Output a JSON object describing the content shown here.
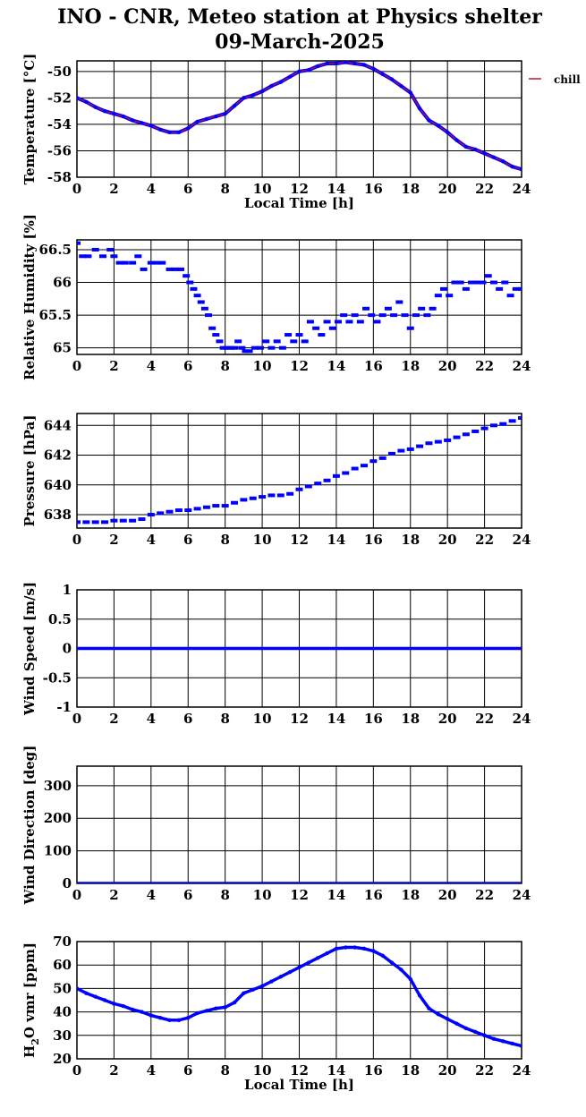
{
  "title": "INO - CNR, Meteo station at Physics shelter",
  "subtitle": "09-March-2025",
  "colors": {
    "series": "#0000ff",
    "chill": "#c8102e",
    "axis": "#000000"
  },
  "chart_data": [
    {
      "type": "line",
      "id": "temperature",
      "ylabel": "Temperature [°C]",
      "xlabel": "Local Time [h]",
      "xlim": [
        0,
        24
      ],
      "ylim": [
        -58,
        -49.2
      ],
      "yticks": [
        -58,
        -56,
        -54,
        -52,
        -50
      ],
      "xticks": [
        0,
        2,
        4,
        6,
        8,
        10,
        12,
        14,
        16,
        18,
        20,
        22,
        24
      ],
      "grid": true,
      "legend": [
        "chill"
      ],
      "series": [
        {
          "name": "",
          "x": [
            0,
            0.5,
            1,
            1.5,
            2,
            2.5,
            3,
            3.5,
            4,
            4.5,
            5,
            5.5,
            6,
            6.5,
            7,
            7.5,
            8,
            8.5,
            9,
            9.5,
            10,
            10.5,
            11,
            11.5,
            12,
            12.5,
            13,
            13.5,
            14,
            14.5,
            15,
            15.5,
            16,
            16.5,
            17,
            17.5,
            18,
            18.5,
            19,
            19.5,
            20,
            20.5,
            21,
            21.5,
            22,
            22.5,
            23,
            23.5,
            24
          ],
          "y": [
            -52,
            -52.3,
            -52.7,
            -53,
            -53.2,
            -53.4,
            -53.7,
            -53.9,
            -54.1,
            -54.4,
            -54.6,
            -54.6,
            -54.3,
            -53.8,
            -53.6,
            -53.4,
            -53.2,
            -52.6,
            -52,
            -51.8,
            -51.5,
            -51.1,
            -50.8,
            -50.4,
            -50,
            -49.9,
            -49.6,
            -49.4,
            -49.4,
            -49.3,
            -49.4,
            -49.5,
            -49.8,
            -50.2,
            -50.6,
            -51.1,
            -51.6,
            -52.8,
            -53.7,
            -54.1,
            -54.6,
            -55.2,
            -55.7,
            -55.9,
            -56.2,
            -56.5,
            -56.8,
            -57.2,
            -57.4
          ]
        }
      ]
    },
    {
      "type": "scatter",
      "id": "humidity",
      "ylabel": "Relative Humidity [%]",
      "xlabel": "",
      "xlim": [
        0,
        24
      ],
      "ylim": [
        64.9,
        66.65
      ],
      "yticks": [
        65,
        65.5,
        66,
        66.5
      ],
      "xticks": [
        0,
        2,
        4,
        6,
        8,
        10,
        12,
        14,
        16,
        18,
        20,
        22,
        24
      ],
      "grid": true,
      "series": [
        {
          "name": "",
          "x": [
            0,
            0.3,
            0.6,
            1,
            1.4,
            1.8,
            2,
            2.3,
            2.6,
            3,
            3.3,
            3.6,
            4,
            4.3,
            4.6,
            5,
            5.3,
            5.6,
            5.9,
            6.1,
            6.3,
            6.5,
            6.7,
            6.9,
            7.1,
            7.3,
            7.5,
            7.7,
            7.9,
            8.1,
            8.3,
            8.5,
            8.7,
            8.9,
            9.1,
            9.3,
            9.6,
            9.9,
            10.2,
            10.5,
            10.8,
            11.1,
            11.4,
            11.7,
            12,
            12.3,
            12.6,
            12.9,
            13.2,
            13.5,
            13.8,
            14.1,
            14.4,
            14.7,
            15,
            15.3,
            15.6,
            15.9,
            16.2,
            16.5,
            16.8,
            17.1,
            17.4,
            17.7,
            18,
            18.3,
            18.6,
            18.9,
            19.2,
            19.5,
            19.8,
            20.1,
            20.4,
            20.7,
            21,
            21.3,
            21.6,
            21.9,
            22.2,
            22.5,
            22.8,
            23.1,
            23.4,
            23.7,
            24
          ],
          "y": [
            66.6,
            66.4,
            66.4,
            66.5,
            66.4,
            66.5,
            66.4,
            66.3,
            66.3,
            66.3,
            66.4,
            66.2,
            66.3,
            66.3,
            66.3,
            66.2,
            66.2,
            66.2,
            66.1,
            66,
            65.9,
            65.8,
            65.7,
            65.6,
            65.5,
            65.3,
            65.2,
            65.1,
            65,
            65,
            65,
            65,
            65.1,
            65,
            64.95,
            64.95,
            65,
            65,
            65.1,
            65,
            65.1,
            65,
            65.2,
            65.1,
            65.2,
            65.1,
            65.4,
            65.3,
            65.2,
            65.4,
            65.3,
            65.4,
            65.5,
            65.4,
            65.5,
            65.4,
            65.6,
            65.5,
            65.4,
            65.5,
            65.6,
            65.5,
            65.7,
            65.5,
            65.3,
            65.5,
            65.6,
            65.5,
            65.6,
            65.8,
            65.9,
            65.8,
            66,
            66,
            65.9,
            66,
            66,
            66,
            66.1,
            66,
            65.9,
            66,
            65.8,
            65.9,
            65.9
          ]
        }
      ]
    },
    {
      "type": "scatter",
      "id": "pressure",
      "ylabel": "Pressure [hPa]",
      "xlabel": "",
      "xlim": [
        0,
        24
      ],
      "ylim": [
        637.1,
        644.8
      ],
      "yticks": [
        638,
        640,
        642,
        644
      ],
      "xticks": [
        0,
        2,
        4,
        6,
        8,
        10,
        12,
        14,
        16,
        18,
        20,
        22,
        24
      ],
      "grid": true,
      "series": [
        {
          "name": "",
          "x": [
            0,
            0.5,
            1,
            1.5,
            2,
            2.5,
            3,
            3.5,
            4,
            4.5,
            5,
            5.5,
            6,
            6.5,
            7,
            7.5,
            8,
            8.5,
            9,
            9.5,
            10,
            10.5,
            11,
            11.5,
            12,
            12.5,
            13,
            13.5,
            14,
            14.5,
            15,
            15.5,
            16,
            16.5,
            17,
            17.5,
            18,
            18.5,
            19,
            19.5,
            20,
            20.5,
            21,
            21.5,
            22,
            22.5,
            23,
            23.5,
            24
          ],
          "y": [
            637.5,
            637.5,
            637.5,
            637.5,
            637.6,
            637.6,
            637.6,
            637.7,
            638,
            638.1,
            638.2,
            638.3,
            638.3,
            638.4,
            638.5,
            638.6,
            638.6,
            638.8,
            639,
            639.1,
            639.2,
            639.3,
            639.3,
            639.4,
            639.7,
            639.9,
            640.1,
            640.3,
            640.6,
            640.8,
            641.1,
            641.3,
            641.6,
            641.8,
            642.1,
            642.3,
            642.4,
            642.6,
            642.8,
            642.9,
            643,
            643.2,
            643.4,
            643.6,
            643.8,
            644,
            644.1,
            644.3,
            644.5
          ]
        }
      ]
    },
    {
      "type": "line",
      "id": "wind_speed",
      "ylabel": "Wind Speed [m/s]",
      "xlabel": "",
      "xlim": [
        0,
        24
      ],
      "ylim": [
        -1,
        1
      ],
      "yticks": [
        -1,
        -0.5,
        0,
        0.5,
        1
      ],
      "xticks": [
        0,
        2,
        4,
        6,
        8,
        10,
        12,
        14,
        16,
        18,
        20,
        22,
        24
      ],
      "grid": true,
      "series": [
        {
          "name": "",
          "x": [
            0,
            24
          ],
          "y": [
            0,
            0
          ]
        }
      ]
    },
    {
      "type": "line",
      "id": "wind_direction",
      "ylabel": "Wind Direction [deg]",
      "xlabel": "",
      "xlim": [
        0,
        24
      ],
      "ylim": [
        0,
        360
      ],
      "yticks": [
        0,
        100,
        200,
        300
      ],
      "xticks": [
        0,
        2,
        4,
        6,
        8,
        10,
        12,
        14,
        16,
        18,
        20,
        22,
        24
      ],
      "grid": true,
      "series": [
        {
          "name": "",
          "x": [
            0,
            24
          ],
          "y": [
            0,
            0
          ]
        }
      ]
    },
    {
      "type": "line",
      "id": "h2o",
      "ylabel": "H2O vmr [ppm]",
      "xlabel": "Local Time [h]",
      "xlim": [
        0,
        24
      ],
      "ylim": [
        20,
        70
      ],
      "yticks": [
        20,
        30,
        40,
        50,
        60,
        70
      ],
      "xticks": [
        0,
        2,
        4,
        6,
        8,
        10,
        12,
        14,
        16,
        18,
        20,
        22,
        24
      ],
      "grid": true,
      "series": [
        {
          "name": "",
          "x": [
            0,
            0.5,
            1,
            1.5,
            2,
            2.5,
            3,
            3.5,
            4,
            4.5,
            5,
            5.5,
            6,
            6.5,
            7,
            7.5,
            8,
            8.5,
            9,
            9.5,
            10,
            10.5,
            11,
            11.5,
            12,
            12.5,
            13,
            13.5,
            14,
            14.5,
            15,
            15.5,
            16,
            16.5,
            17,
            17.5,
            18,
            18.5,
            19,
            19.5,
            20,
            20.5,
            21,
            21.5,
            22,
            22.5,
            23,
            23.5,
            24
          ],
          "y": [
            50,
            48,
            46.5,
            45,
            43.5,
            42.5,
            41,
            40,
            38.5,
            37.5,
            36.5,
            36.5,
            37.5,
            39.5,
            40.5,
            41.5,
            42,
            44,
            48,
            49.5,
            51,
            53,
            55,
            57,
            59,
            61,
            63,
            65,
            67,
            67.5,
            67.5,
            67,
            66,
            64,
            61,
            58,
            54,
            47,
            41.5,
            39,
            37,
            35,
            33,
            31.5,
            30,
            28.5,
            27.5,
            26.5,
            25.5
          ]
        }
      ]
    }
  ]
}
